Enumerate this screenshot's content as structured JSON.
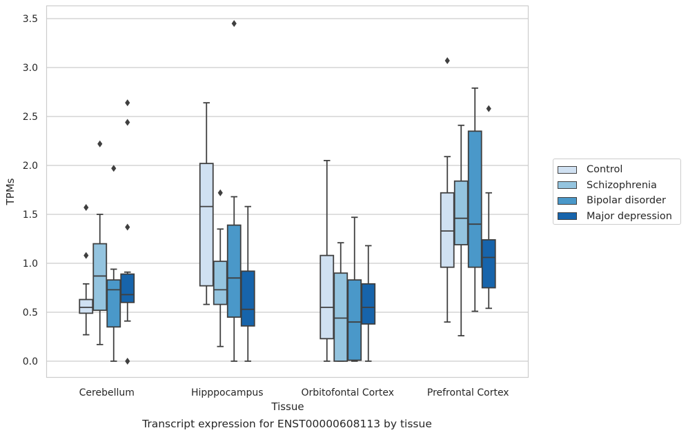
{
  "chart_data": {
    "type": "box",
    "title": "",
    "xlabel": "Tissue",
    "ylabel": "TPMs",
    "caption": "Transcript expression for ENST00000608113 by tissue",
    "ylim": [
      -0.17,
      3.63
    ],
    "yticks": [
      "0.0",
      "0.5",
      "1.0",
      "1.5",
      "2.0",
      "2.5",
      "3.0",
      "3.5"
    ],
    "grid": true,
    "legend_position": "right",
    "categories": [
      "Cerebellum",
      "Hipppocampus",
      "Orbitofontal Cortex",
      "Prefrontal Cortex"
    ],
    "series": [
      {
        "name": "Control",
        "color": "#d0e1f2",
        "boxes": [
          {
            "whisker_low": 0.27,
            "q1": 0.49,
            "median": 0.55,
            "q3": 0.63,
            "whisker_high": 0.79,
            "outliers": [
              1.08,
              1.57
            ]
          },
          {
            "whisker_low": 0.58,
            "q1": 0.77,
            "median": 1.58,
            "q3": 2.02,
            "whisker_high": 2.64,
            "outliers": []
          },
          {
            "whisker_low": 0.0,
            "q1": 0.23,
            "median": 0.55,
            "q3": 1.08,
            "whisker_high": 2.05,
            "outliers": []
          },
          {
            "whisker_low": 0.4,
            "q1": 0.96,
            "median": 1.33,
            "q3": 1.72,
            "whisker_high": 2.09,
            "outliers": [
              3.07
            ]
          }
        ]
      },
      {
        "name": "Schizophrenia",
        "color": "#94c4df",
        "boxes": [
          {
            "whisker_low": 0.17,
            "q1": 0.52,
            "median": 0.87,
            "q3": 1.2,
            "whisker_high": 1.5,
            "outliers": [
              2.22
            ]
          },
          {
            "whisker_low": 0.15,
            "q1": 0.58,
            "median": 0.73,
            "q3": 1.02,
            "whisker_high": 1.35,
            "outliers": [
              1.72
            ]
          },
          {
            "whisker_low": 0.0,
            "q1": 0.0,
            "median": 0.44,
            "q3": 0.9,
            "whisker_high": 1.21,
            "outliers": []
          },
          {
            "whisker_low": 0.26,
            "q1": 1.19,
            "median": 1.46,
            "q3": 1.84,
            "whisker_high": 2.41,
            "outliers": []
          }
        ]
      },
      {
        "name": "Bipolar disorder",
        "color": "#4a98c9",
        "boxes": [
          {
            "whisker_low": 0.0,
            "q1": 0.35,
            "median": 0.73,
            "q3": 0.83,
            "whisker_high": 0.94,
            "outliers": [
              1.97
            ]
          },
          {
            "whisker_low": 0.0,
            "q1": 0.45,
            "median": 0.85,
            "q3": 1.39,
            "whisker_high": 1.68,
            "outliers": [
              3.45
            ]
          },
          {
            "whisker_low": 0.0,
            "q1": 0.01,
            "median": 0.4,
            "q3": 0.83,
            "whisker_high": 1.47,
            "outliers": []
          },
          {
            "whisker_low": 0.51,
            "q1": 0.96,
            "median": 1.4,
            "q3": 2.35,
            "whisker_high": 2.79,
            "outliers": []
          }
        ]
      },
      {
        "name": "Major depression",
        "color": "#1764ab",
        "boxes": [
          {
            "whisker_low": 0.41,
            "q1": 0.6,
            "median": 0.68,
            "q3": 0.89,
            "whisker_high": 0.91,
            "outliers": [
              0.0,
              1.37,
              2.44,
              2.64
            ]
          },
          {
            "whisker_low": 0.0,
            "q1": 0.36,
            "median": 0.53,
            "q3": 0.92,
            "whisker_high": 1.58,
            "outliers": []
          },
          {
            "whisker_low": 0.0,
            "q1": 0.38,
            "median": 0.55,
            "q3": 0.79,
            "whisker_high": 1.18,
            "outliers": []
          },
          {
            "whisker_low": 0.54,
            "q1": 0.75,
            "median": 1.06,
            "q3": 1.24,
            "whisker_high": 1.72,
            "outliers": [
              2.58
            ]
          }
        ]
      }
    ]
  }
}
